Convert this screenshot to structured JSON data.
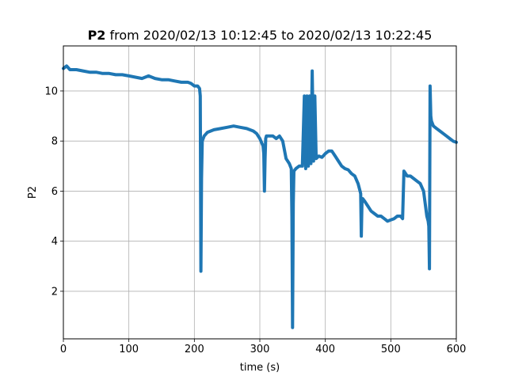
{
  "chart_data": {
    "type": "line",
    "title_bold": "P2",
    "title_rest": " from 2020/02/13 10:12:45 to 2020/02/13 10:22:45",
    "xlabel": "time (s)",
    "ylabel": "P2",
    "xlim": [
      0,
      600
    ],
    "ylim": [
      0.1,
      11.8
    ],
    "xticks": [
      0,
      100,
      200,
      300,
      400,
      500,
      600
    ],
    "yticks": [
      2,
      4,
      6,
      8,
      10
    ],
    "grid": true,
    "line_color": "#1f77b4",
    "series": [
      {
        "x": [
          0,
          5,
          10,
          20,
          30,
          40,
          50,
          60,
          70,
          80,
          90,
          100,
          110,
          120,
          130,
          140,
          150,
          160,
          170,
          180,
          190,
          195,
          200,
          205,
          208,
          209,
          210,
          211,
          212,
          215,
          220,
          230,
          240,
          250,
          260,
          270,
          280,
          290,
          295,
          300,
          305,
          306,
          307,
          308,
          309,
          310,
          315,
          320,
          325,
          330,
          335,
          340,
          345,
          348,
          349,
          350,
          351,
          352,
          355,
          360,
          365,
          368,
          370,
          372,
          374,
          376,
          378,
          380,
          382,
          384,
          386,
          390,
          395,
          400,
          405,
          410,
          415,
          420,
          425,
          430,
          435,
          440,
          445,
          450,
          453,
          454,
          455,
          456,
          457,
          460,
          465,
          470,
          475,
          480,
          485,
          490,
          495,
          500,
          505,
          510,
          515,
          518,
          520,
          525,
          530,
          535,
          540,
          545,
          550,
          555,
          557,
          558,
          559,
          560,
          561,
          562,
          565,
          570,
          575,
          580,
          585,
          590,
          595,
          600
        ],
        "y": [
          10.9,
          11.0,
          10.85,
          10.85,
          10.8,
          10.75,
          10.75,
          10.7,
          10.7,
          10.65,
          10.65,
          10.6,
          10.55,
          10.5,
          10.6,
          10.5,
          10.45,
          10.45,
          10.4,
          10.35,
          10.35,
          10.3,
          10.2,
          10.2,
          10.1,
          9.8,
          2.8,
          6.5,
          8.0,
          8.2,
          8.35,
          8.45,
          8.5,
          8.55,
          8.6,
          8.55,
          8.5,
          8.4,
          8.3,
          8.1,
          7.8,
          7.5,
          6.0,
          7.3,
          8.1,
          8.2,
          8.2,
          8.2,
          8.1,
          8.2,
          8.0,
          7.3,
          7.1,
          6.9,
          5.0,
          0.55,
          5.5,
          6.8,
          6.9,
          7.0,
          7.0,
          9.8,
          6.9,
          9.8,
          7.0,
          9.8,
          7.1,
          10.8,
          7.2,
          9.8,
          7.3,
          7.4,
          7.35,
          7.5,
          7.6,
          7.6,
          7.4,
          7.2,
          7.0,
          6.9,
          6.85,
          6.7,
          6.6,
          6.3,
          6.0,
          5.9,
          4.2,
          5.7,
          5.7,
          5.6,
          5.4,
          5.2,
          5.1,
          5.0,
          5.0,
          4.9,
          4.8,
          4.85,
          4.9,
          5.0,
          5.0,
          4.9,
          6.8,
          6.6,
          6.6,
          6.5,
          6.4,
          6.3,
          6.0,
          5.0,
          4.8,
          4.6,
          2.9,
          10.2,
          9.0,
          8.8,
          8.6,
          8.5,
          8.4,
          8.3,
          8.2,
          8.1,
          8.0,
          7.95
        ]
      }
    ]
  }
}
